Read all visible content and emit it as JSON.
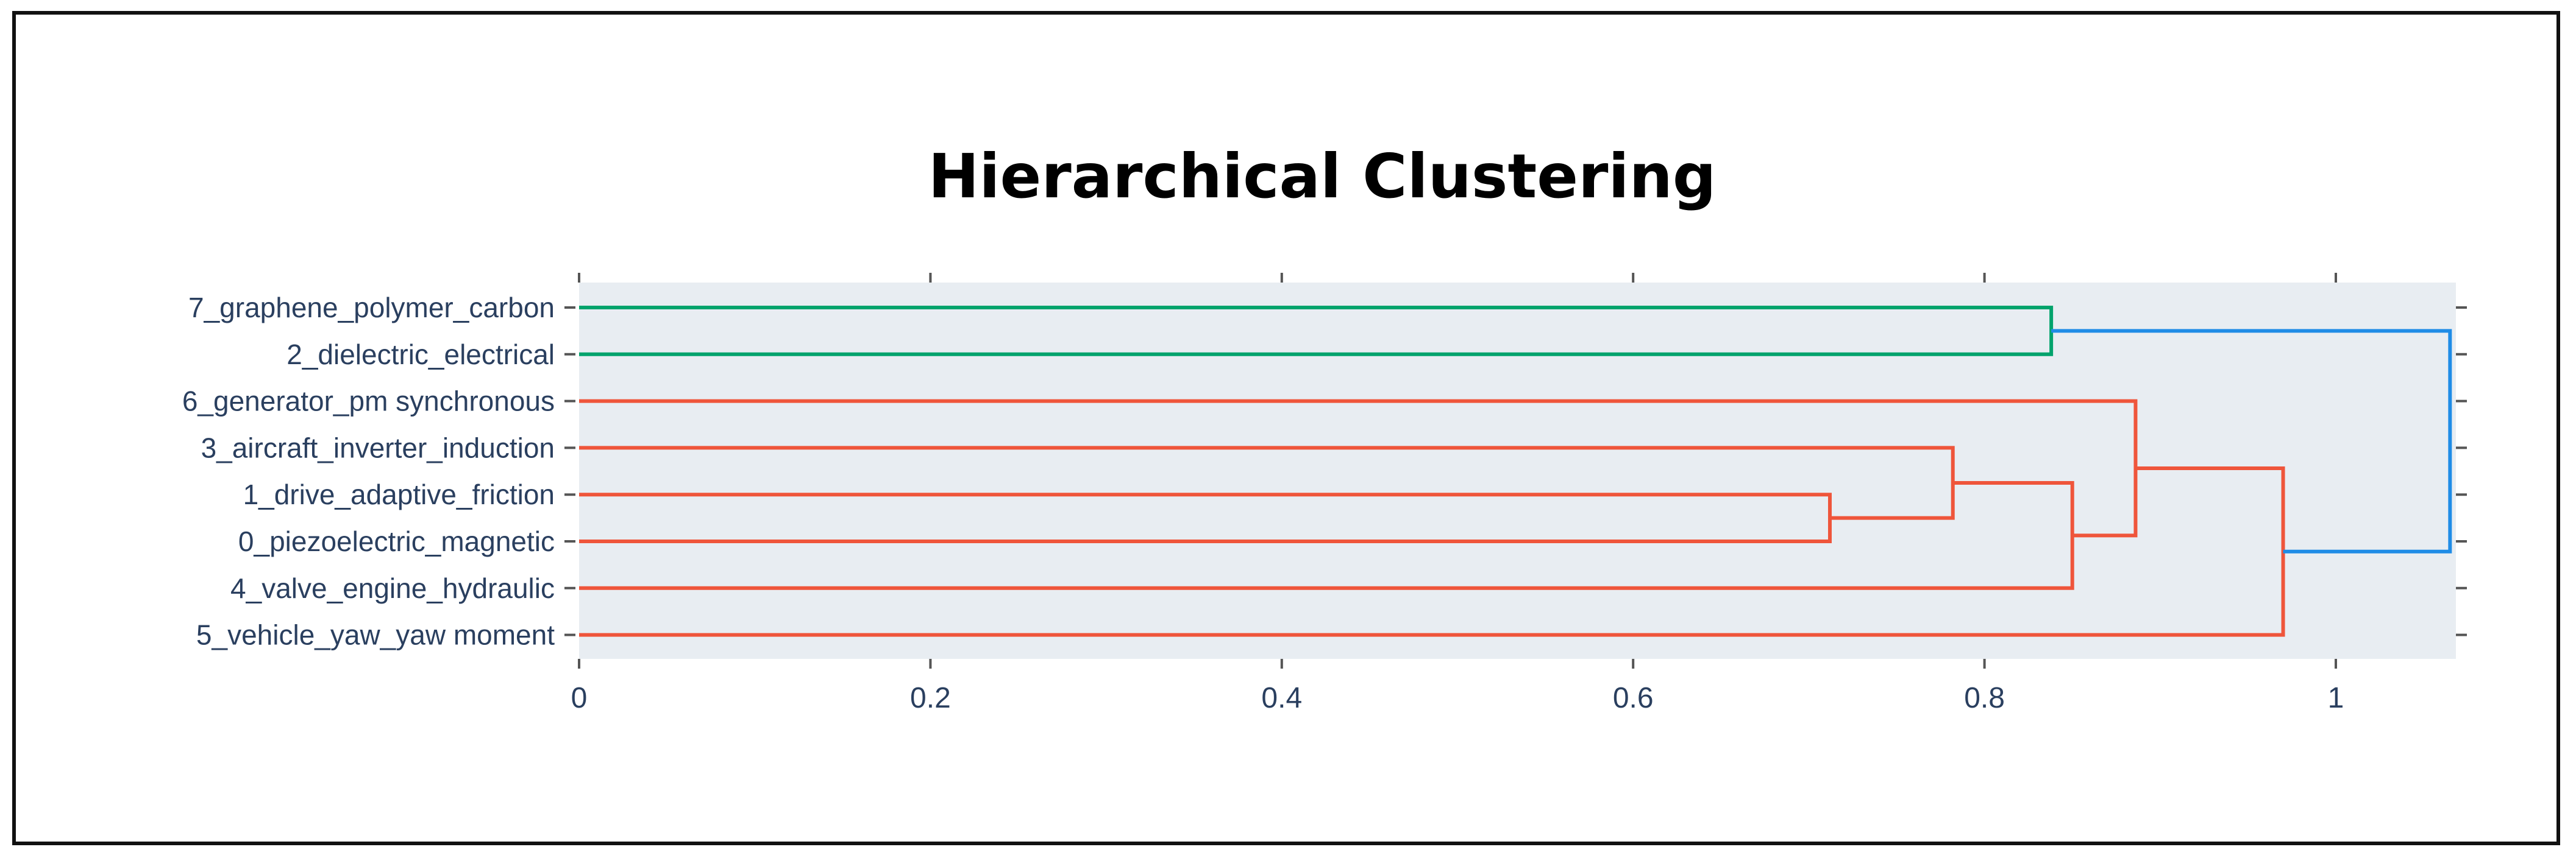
{
  "chart_data": {
    "type": "dendrogram",
    "title": "Hierarchical Clustering",
    "xlabel": "",
    "ylabel": "",
    "orientation": "horizontal",
    "x_range": [
      0,
      1.065
    ],
    "x_ticks": [
      0,
      0.2,
      0.4,
      0.6,
      0.8,
      1
    ],
    "x_tick_labels": [
      "0",
      "0.2",
      "0.4",
      "0.6",
      "0.8",
      "1"
    ],
    "leaves": [
      "7_graphene_polymer_carbon",
      "2_dielectric_electrical",
      "6_generator_pm synchronous",
      "3_aircraft_inverter_induction",
      "1_drive_adaptive_friction",
      "0_piezoelectric_magnetic",
      "4_valve_engine_hydraulic",
      "5_vehicle_yaw_yaw moment"
    ],
    "merges": [
      {
        "id": "A",
        "children": [
          "1_drive_adaptive_friction",
          "0_piezoelectric_magnetic"
        ],
        "distance": 0.712,
        "color": "#ef553b"
      },
      {
        "id": "B",
        "children": [
          "3_aircraft_inverter_induction",
          "A"
        ],
        "distance": 0.782,
        "color": "#ef553b"
      },
      {
        "id": "C",
        "children": [
          "B",
          "4_valve_engine_hydraulic"
        ],
        "distance": 0.85,
        "color": "#ef553b"
      },
      {
        "id": "D",
        "children": [
          "6_generator_pm synchronous",
          "C"
        ],
        "distance": 0.886,
        "color": "#ef553b"
      },
      {
        "id": "E",
        "children": [
          "D",
          "5_vehicle_yaw_yaw moment"
        ],
        "distance": 0.97,
        "color": "#ef553b"
      },
      {
        "id": "F",
        "children": [
          "7_graphene_polymer_carbon",
          "2_dielectric_electrical"
        ],
        "distance": 0.838,
        "color": "#00a36c"
      },
      {
        "id": "G",
        "children": [
          "F",
          "E"
        ],
        "distance": 1.065,
        "color": "#1f8ce6"
      }
    ],
    "plot_background": "#e8edf2",
    "grid": false
  }
}
